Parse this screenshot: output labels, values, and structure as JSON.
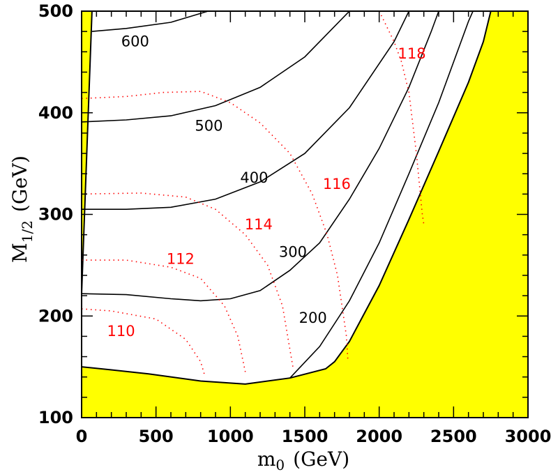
{
  "chart_data": {
    "type": "line",
    "title": "",
    "xlabel": {
      "main": "m",
      "sub": "0",
      "unit": "(GeV)"
    },
    "ylabel": {
      "main": "M",
      "sub": "1/2",
      "unit": "(GeV)"
    },
    "xlim": [
      0,
      3000
    ],
    "ylim": [
      100,
      500
    ],
    "x_ticks": [
      "0",
      "500",
      "1000",
      "1500",
      "2000",
      "2500",
      "3000"
    ],
    "y_ticks": [
      "100",
      "200",
      "300",
      "400",
      "500"
    ],
    "grid": false,
    "colors": {
      "excluded": "#ffff00",
      "gluino_contour": "#000000",
      "higgs_contour": "#ff0000",
      "frame": "#000000"
    },
    "excluded_regions": [
      {
        "name": "",
        "points": [
          [
            0,
            500
          ],
          [
            70,
            500
          ],
          [
            0,
            222
          ]
        ]
      },
      {
        "name": "",
        "points": [
          [
            0,
            150
          ],
          [
            200,
            147
          ],
          [
            450,
            143
          ],
          [
            800,
            136
          ],
          [
            1100,
            133
          ],
          [
            1400,
            139
          ],
          [
            1640,
            148
          ],
          [
            1700,
            155
          ],
          [
            1800,
            175
          ],
          [
            2000,
            230
          ],
          [
            2200,
            295
          ],
          [
            2400,
            362
          ],
          [
            2600,
            430
          ],
          [
            2700,
            470
          ],
          [
            2750,
            500
          ],
          [
            3000,
            500
          ],
          [
            3000,
            100
          ],
          [
            0,
            100
          ]
        ]
      }
    ],
    "series": [
      {
        "name": "",
        "label": "600",
        "color": "#000000",
        "dash": "solid",
        "points": [
          [
            70,
            480
          ],
          [
            300,
            483
          ],
          [
            600,
            489
          ],
          [
            850,
            500
          ]
        ]
      },
      {
        "name": "",
        "label": "500",
        "color": "#000000",
        "dash": "solid",
        "points": [
          [
            0,
            391
          ],
          [
            300,
            393
          ],
          [
            600,
            397
          ],
          [
            900,
            407
          ],
          [
            1200,
            425
          ],
          [
            1500,
            455
          ],
          [
            1800,
            500
          ]
        ]
      },
      {
        "name": "",
        "label": "400",
        "color": "#000000",
        "dash": "solid",
        "points": [
          [
            0,
            305
          ],
          [
            300,
            305
          ],
          [
            600,
            307
          ],
          [
            900,
            315
          ],
          [
            1200,
            332
          ],
          [
            1500,
            360
          ],
          [
            1800,
            405
          ],
          [
            2100,
            470
          ],
          [
            2200,
            500
          ]
        ]
      },
      {
        "name": "",
        "label": "300",
        "color": "#000000",
        "dash": "solid",
        "points": [
          [
            0,
            222
          ],
          [
            300,
            221
          ],
          [
            600,
            217
          ],
          [
            800,
            215
          ],
          [
            1000,
            217
          ],
          [
            1200,
            225
          ],
          [
            1400,
            245
          ],
          [
            1600,
            272
          ],
          [
            1800,
            315
          ],
          [
            2000,
            365
          ],
          [
            2200,
            425
          ],
          [
            2350,
            480
          ],
          [
            2400,
            500
          ]
        ]
      },
      {
        "name": "",
        "label": "200",
        "color": "#000000",
        "dash": "solid",
        "points": [
          [
            1400,
            139
          ],
          [
            1600,
            170
          ],
          [
            1800,
            215
          ],
          [
            2000,
            272
          ],
          [
            2200,
            340
          ],
          [
            2400,
            410
          ],
          [
            2600,
            490
          ],
          [
            2630,
            500
          ]
        ]
      },
      {
        "name": "",
        "label": "110",
        "color": "#ff0000",
        "dash": "dotted",
        "points": [
          [
            0,
            207
          ],
          [
            200,
            205
          ],
          [
            500,
            197
          ],
          [
            700,
            177
          ],
          [
            800,
            155
          ],
          [
            830,
            140
          ]
        ]
      },
      {
        "name": "",
        "label": "112",
        "color": "#ff0000",
        "dash": "dotted",
        "points": [
          [
            0,
            255
          ],
          [
            300,
            255
          ],
          [
            600,
            248
          ],
          [
            800,
            237
          ],
          [
            960,
            210
          ],
          [
            1050,
            180
          ],
          [
            1100,
            145
          ]
        ]
      },
      {
        "name": "",
        "label": "114",
        "color": "#ff0000",
        "dash": "dotted",
        "points": [
          [
            0,
            320
          ],
          [
            400,
            321
          ],
          [
            700,
            317
          ],
          [
            900,
            305
          ],
          [
            1100,
            280
          ],
          [
            1250,
            250
          ],
          [
            1350,
            210
          ],
          [
            1420,
            150
          ]
        ]
      },
      {
        "name": "",
        "label": "116",
        "color": "#ff0000",
        "dash": "dotted",
        "points": [
          [
            0,
            414
          ],
          [
            300,
            416
          ],
          [
            550,
            420
          ],
          [
            800,
            421
          ],
          [
            1000,
            410
          ],
          [
            1200,
            390
          ],
          [
            1400,
            360
          ],
          [
            1550,
            320
          ],
          [
            1650,
            280
          ],
          [
            1720,
            240
          ],
          [
            1780,
            180
          ],
          [
            1790,
            155
          ]
        ]
      },
      {
        "name": "",
        "label": "118",
        "color": "#ff0000",
        "dash": "dotted",
        "points": [
          [
            2000,
            500
          ],
          [
            2100,
            470
          ],
          [
            2150,
            450
          ],
          [
            2200,
            420
          ],
          [
            2250,
            360
          ],
          [
            2290,
            300
          ],
          [
            2300,
            290
          ]
        ]
      }
    ],
    "labels": [
      {
        "text": "600",
        "color": "#000000",
        "x": 360,
        "y": 470
      },
      {
        "text": "500",
        "color": "#000000",
        "x": 855,
        "y": 387
      },
      {
        "text": "400",
        "color": "#000000",
        "x": 1160,
        "y": 336
      },
      {
        "text": "300",
        "color": "#000000",
        "x": 1420,
        "y": 263
      },
      {
        "text": "200",
        "color": "#000000",
        "x": 1555,
        "y": 198
      },
      {
        "text": "110",
        "color": "#ff0000",
        "x": 265,
        "y": 185
      },
      {
        "text": "112",
        "color": "#ff0000",
        "x": 665,
        "y": 256
      },
      {
        "text": "114",
        "color": "#ff0000",
        "x": 1190,
        "y": 290
      },
      {
        "text": "116",
        "color": "#ff0000",
        "x": 1715,
        "y": 330
      },
      {
        "text": "118",
        "color": "#ff0000",
        "x": 2220,
        "y": 458
      }
    ]
  }
}
